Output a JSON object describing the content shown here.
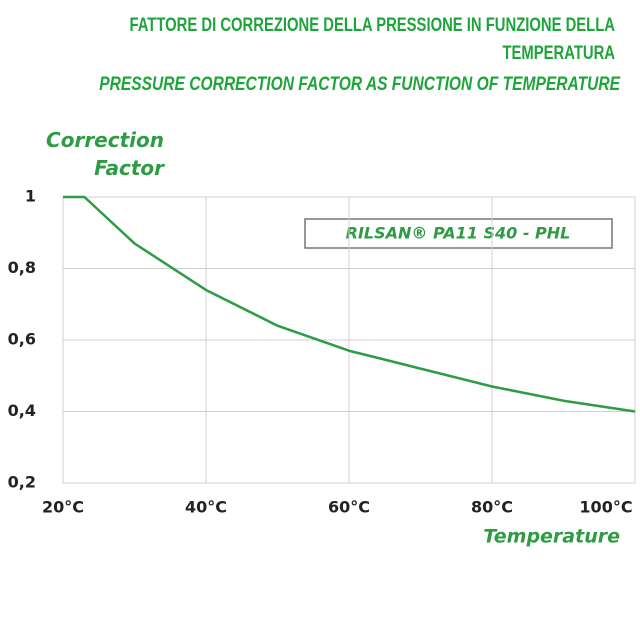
{
  "chart_data": {
    "type": "line",
    "title": "FATTORE DI CORREZIONE DELLA PRESSIONE IN FUNZIONE DELLA TEMPERATURA",
    "subtitle": "PRESSURE CORRECTION FACTOR AS FUNCTION OF TEMPERATURE",
    "y_label": "Correction Factor",
    "x_label": "Temperature",
    "annotation": "RILSAN® PA11 S40 - PHL",
    "x": [
      20,
      23,
      30,
      40,
      50,
      60,
      70,
      80,
      90,
      100
    ],
    "values": [
      1,
      1,
      0.87,
      0.74,
      0.64,
      0.57,
      0.52,
      0.47,
      0.43,
      0.4
    ],
    "color": "#2e9b45",
    "xlim": [
      20,
      100
    ],
    "xticks": [
      {
        "value": 20,
        "label": "20°C"
      },
      {
        "value": 40,
        "label": "40°C"
      },
      {
        "value": 60,
        "label": "60°C"
      },
      {
        "value": 80,
        "label": "80°C"
      },
      {
        "value": 100,
        "label": "100°C"
      }
    ],
    "ylim": [
      0.2,
      1
    ],
    "yticks": [
      {
        "value": 0.2,
        "label": "0,2"
      },
      {
        "value": 0.4,
        "label": "0,4"
      },
      {
        "value": 0.6,
        "label": "0,6"
      },
      {
        "value": 0.8,
        "label": "0,8"
      },
      1
    ],
    "grid": true
  }
}
